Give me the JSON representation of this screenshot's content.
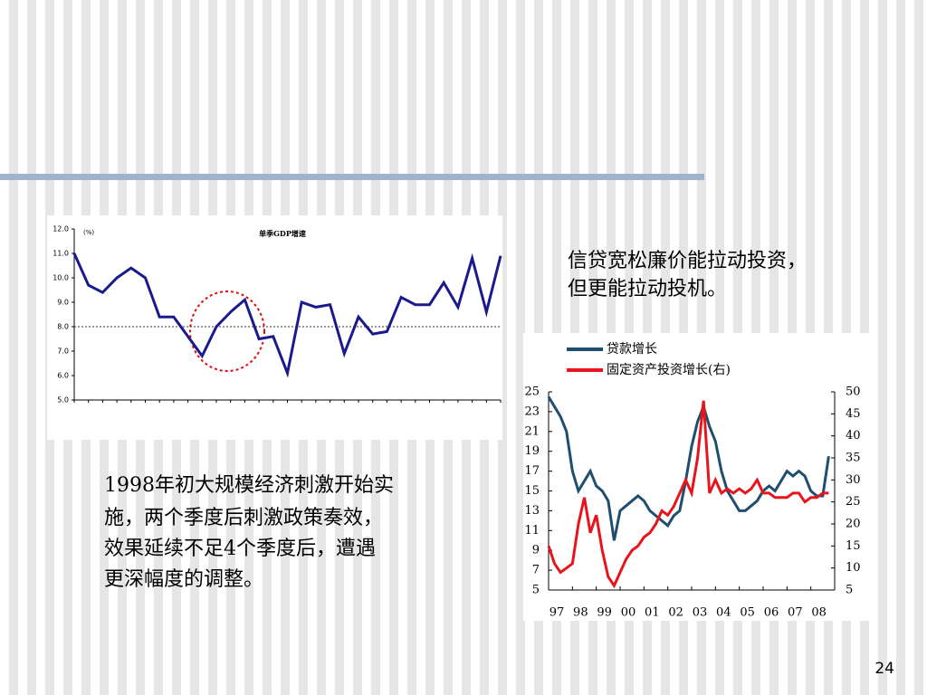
{
  "chart_data": [
    {
      "type": "line",
      "title": "单季GDP增速",
      "ylabel": "(%)",
      "categories": [
        null,
        null,
        null,
        null,
        null,
        null,
        null,
        null,
        null,
        null,
        null,
        null,
        null,
        null,
        null,
        null,
        null,
        null,
        null,
        null,
        null,
        null,
        null,
        null,
        null,
        null,
        null,
        null,
        null,
        null,
        null
      ],
      "values": [
        11.0,
        9.7,
        9.4,
        10.0,
        10.4,
        10.0,
        8.4,
        8.4,
        7.6,
        6.8,
        8.0,
        8.6,
        9.1,
        7.5,
        7.6,
        6.1,
        9.0,
        8.8,
        8.9,
        6.9,
        8.4,
        7.7,
        7.8,
        9.2,
        8.9,
        8.9,
        9.8,
        8.8,
        10.8,
        8.6,
        10.9
      ],
      "color": "#1a1a8c",
      "reference_line": 8.0,
      "ylim": [
        5,
        12
      ],
      "yticks": [
        {
          "value": 5,
          "label": "5.0"
        },
        {
          "value": 6,
          "label": "6.0"
        },
        {
          "value": 7,
          "label": "7.0"
        },
        {
          "value": 8,
          "label": "8.0"
        },
        {
          "value": 9,
          "label": "9.0"
        },
        {
          "value": 10,
          "label": "10.0"
        },
        {
          "value": 11,
          "label": "11.0"
        },
        {
          "value": 12,
          "label": "12.0"
        }
      ]
    },
    {
      "type": "line",
      "x": [
        1997,
        1997.25,
        1997.5,
        1997.75,
        1998,
        1998.25,
        1998.5,
        1998.75,
        1999,
        1999.25,
        1999.5,
        1999.75,
        2000,
        2000.25,
        2000.5,
        2000.75,
        2001,
        2001.25,
        2001.5,
        2001.75,
        2002,
        2002.25,
        2002.5,
        2002.75,
        2003,
        2003.25,
        2003.5,
        2003.75,
        2004,
        2004.25,
        2004.5,
        2004.75,
        2005,
        2005.25,
        2005.5,
        2005.75,
        2006,
        2006.25,
        2006.5,
        2006.75,
        2007,
        2007.25,
        2007.5,
        2007.75,
        2008,
        2008.25,
        2008.5,
        2008.75
      ],
      "series": [
        {
          "name": "贷款增长",
          "color": "#1f4e6e",
          "values": [
            24.5,
            23.5,
            22.5,
            21,
            17,
            15,
            16,
            17,
            15.5,
            15,
            14,
            10,
            13,
            13.5,
            14,
            14.5,
            14,
            13,
            12.5,
            12,
            11.5,
            12.5,
            13,
            16,
            19.5,
            22,
            23.5,
            21.5,
            20,
            17,
            15,
            14,
            13,
            13,
            13.5,
            14,
            15,
            15.5,
            15,
            16,
            17,
            16.5,
            17,
            16.5,
            15,
            14.5,
            14.5,
            18.5
          ]
        },
        {
          "name": "固定资产投资增长(右)",
          "color": "#e8141b",
          "axis": "y2",
          "values": [
            15,
            11,
            9,
            10,
            11,
            20,
            26,
            18,
            22,
            14,
            8,
            6,
            9,
            12,
            14,
            15,
            17,
            18,
            20,
            23,
            22,
            24,
            27,
            30,
            27,
            35,
            48,
            27,
            30,
            27,
            28,
            27,
            28,
            27,
            28,
            30,
            27,
            27,
            26,
            26,
            26,
            27,
            27,
            25,
            26,
            26,
            27,
            27
          ]
        }
      ],
      "xlim": [
        1997,
        2009
      ],
      "xticks": [
        {
          "value": 1997,
          "label": "97"
        },
        {
          "value": 1998,
          "label": "98"
        },
        {
          "value": 1999,
          "label": "99"
        },
        {
          "value": 2000,
          "label": "00"
        },
        {
          "value": 2001,
          "label": "01"
        },
        {
          "value": 2002,
          "label": "02"
        },
        {
          "value": 2003,
          "label": "03"
        },
        {
          "value": 2004,
          "label": "04"
        },
        {
          "value": 2005,
          "label": "05"
        },
        {
          "value": 2006,
          "label": "06"
        },
        {
          "value": 2007,
          "label": "07"
        },
        {
          "value": 2008,
          "label": "08"
        }
      ],
      "ylim": [
        5,
        25
      ],
      "yticks": [
        5,
        7,
        9,
        11,
        13,
        15,
        17,
        19,
        21,
        23,
        25
      ],
      "y2lim": [
        5,
        50
      ],
      "y2ticks": [
        5,
        10,
        15,
        20,
        25,
        30,
        35,
        40,
        45,
        50
      ]
    }
  ],
  "texts": {
    "right_note": [
      "信贷宽松廉价能拉动投资，",
      "但更能拉动投机。"
    ],
    "left_note": [
      "1998年初大规模经济刺激开始实",
      "施，两个季度后刺激政策奏效，",
      "效果延续不足4个季度后，遭遇",
      "更深幅度的调整。"
    ],
    "page_number": "24"
  }
}
